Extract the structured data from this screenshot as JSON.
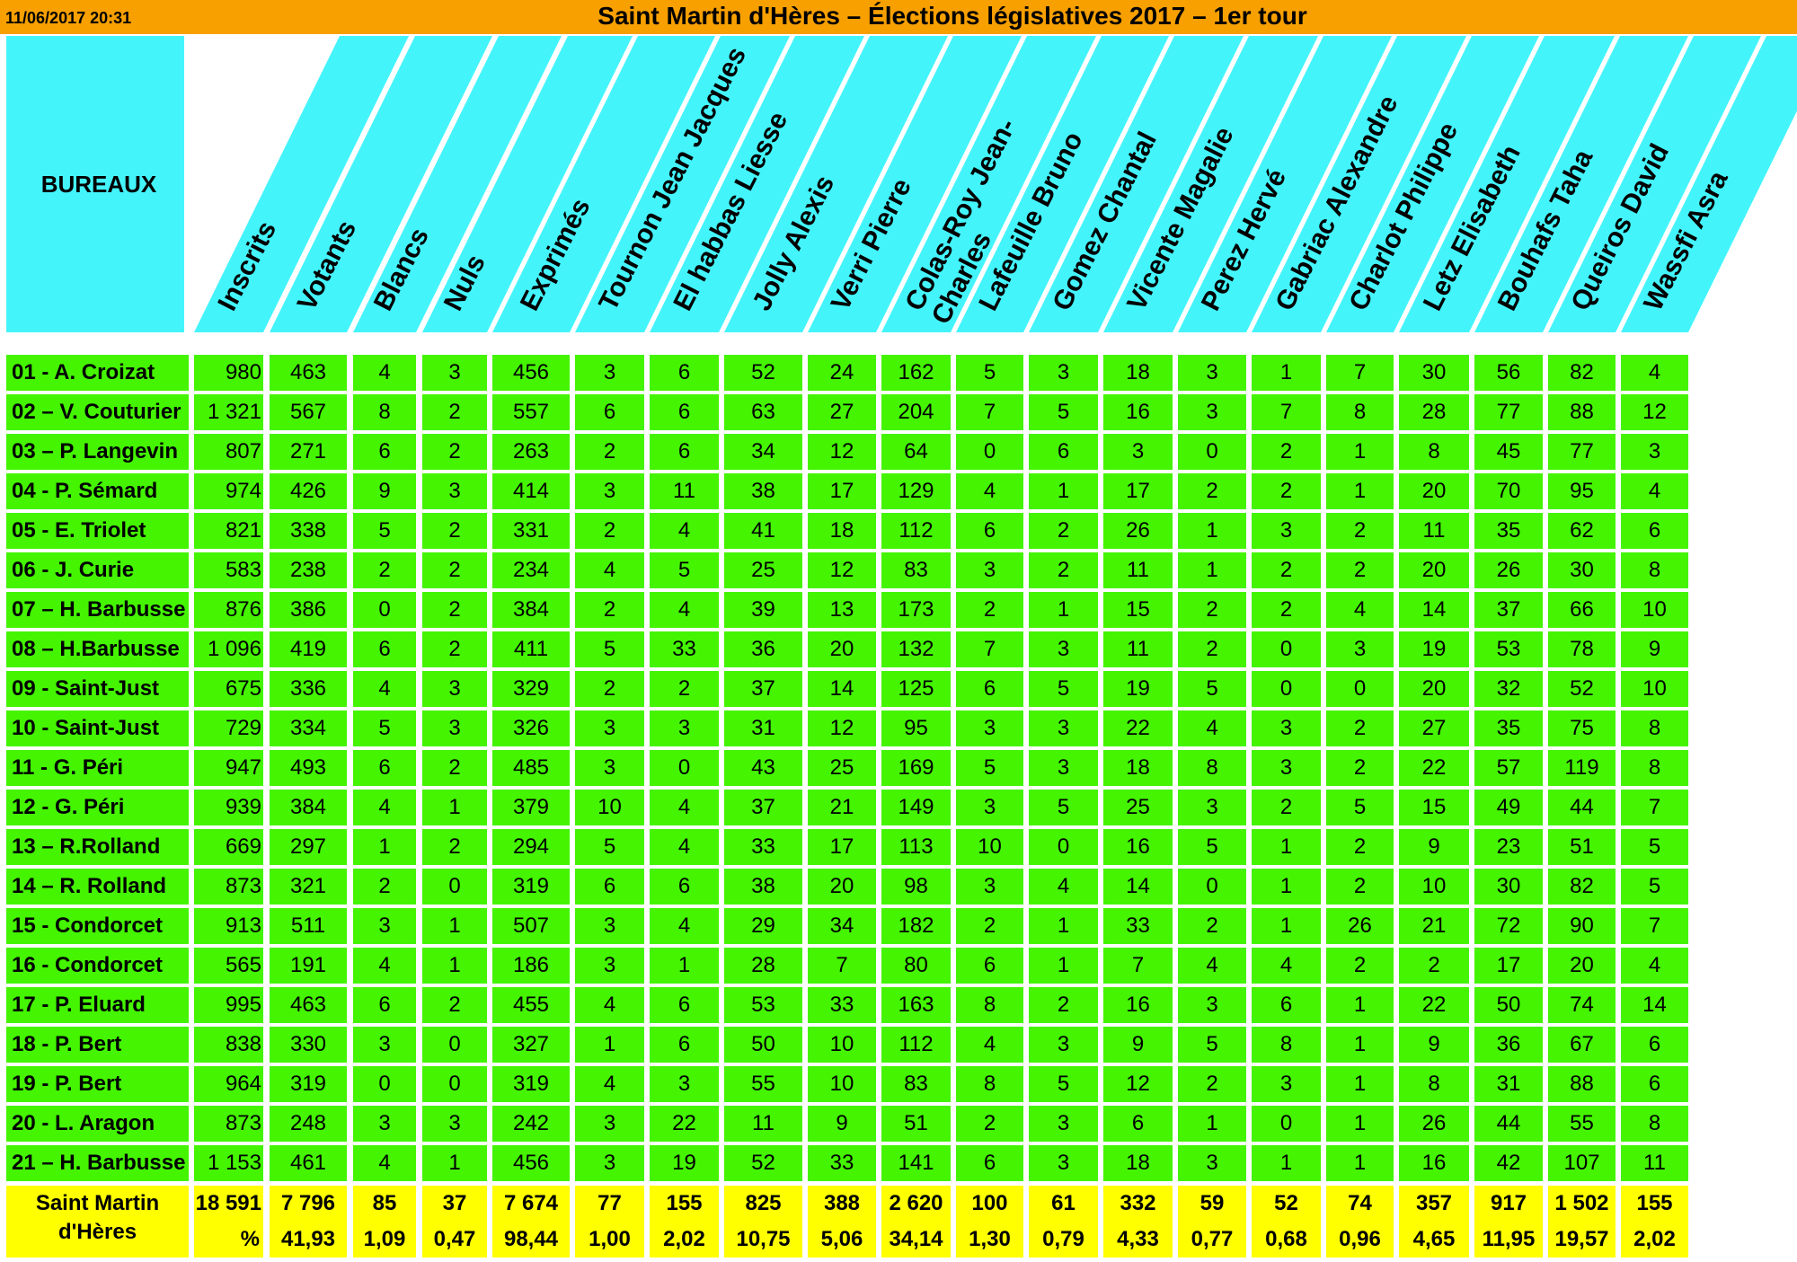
{
  "header": {
    "date": "11/06/2017 20:31",
    "title": "Saint Martin d'Hères – Élections législatives 2017 – 1er tour",
    "bureaux_label": "BUREAUX"
  },
  "columns": [
    [
      "Inscrits"
    ],
    [
      "Votants"
    ],
    [
      "Blancs"
    ],
    [
      "Nuls"
    ],
    [
      "Exprimés"
    ],
    [
      "Tournon Jean Jacques"
    ],
    [
      "El habbas Liesse"
    ],
    [
      "Jolly Alexis"
    ],
    [
      "Verri Pierre"
    ],
    [
      "Colas-Roy Jean-",
      "Charles"
    ],
    [
      "Lafeuille Bruno"
    ],
    [
      "Gomez Chantal"
    ],
    [
      "Vicente Magalie"
    ],
    [
      "Perez Hervé"
    ],
    [
      "Gabriac Alexandre"
    ],
    [
      "Charlot Philippe"
    ],
    [
      "Letz Elisabeth"
    ],
    [
      "Bouhafs Taha"
    ],
    [
      "Queiros David"
    ],
    [
      "Wassfi Asra"
    ]
  ],
  "rows": [
    {
      "name": "01 - A. Croizat",
      "values": [
        "980",
        "463",
        "4",
        "3",
        "456",
        "3",
        "6",
        "52",
        "24",
        "162",
        "5",
        "3",
        "18",
        "3",
        "1",
        "7",
        "30",
        "56",
        "82",
        "4"
      ]
    },
    {
      "name": "02 – V. Couturier",
      "values": [
        "1 321",
        "567",
        "8",
        "2",
        "557",
        "6",
        "6",
        "63",
        "27",
        "204",
        "7",
        "5",
        "16",
        "3",
        "7",
        "8",
        "28",
        "77",
        "88",
        "12"
      ]
    },
    {
      "name": "03 – P. Langevin",
      "values": [
        "807",
        "271",
        "6",
        "2",
        "263",
        "2",
        "6",
        "34",
        "12",
        "64",
        "0",
        "6",
        "3",
        "0",
        "2",
        "1",
        "8",
        "45",
        "77",
        "3"
      ]
    },
    {
      "name": "04 - P. Sémard",
      "values": [
        "974",
        "426",
        "9",
        "3",
        "414",
        "3",
        "11",
        "38",
        "17",
        "129",
        "4",
        "1",
        "17",
        "2",
        "2",
        "1",
        "20",
        "70",
        "95",
        "4"
      ]
    },
    {
      "name": "05 - E. Triolet",
      "values": [
        "821",
        "338",
        "5",
        "2",
        "331",
        "2",
        "4",
        "41",
        "18",
        "112",
        "6",
        "2",
        "26",
        "1",
        "3",
        "2",
        "11",
        "35",
        "62",
        "6"
      ]
    },
    {
      "name": "06 - J. Curie",
      "values": [
        "583",
        "238",
        "2",
        "2",
        "234",
        "4",
        "5",
        "25",
        "12",
        "83",
        "3",
        "2",
        "11",
        "1",
        "2",
        "2",
        "20",
        "26",
        "30",
        "8"
      ]
    },
    {
      "name": "07 – H. Barbusse",
      "values": [
        "876",
        "386",
        "0",
        "2",
        "384",
        "2",
        "4",
        "39",
        "13",
        "173",
        "2",
        "1",
        "15",
        "2",
        "2",
        "4",
        "14",
        "37",
        "66",
        "10"
      ]
    },
    {
      "name": "08 – H.Barbusse",
      "values": [
        "1 096",
        "419",
        "6",
        "2",
        "411",
        "5",
        "33",
        "36",
        "20",
        "132",
        "7",
        "3",
        "11",
        "2",
        "0",
        "3",
        "19",
        "53",
        "78",
        "9"
      ]
    },
    {
      "name": "09 - Saint-Just",
      "values": [
        "675",
        "336",
        "4",
        "3",
        "329",
        "2",
        "2",
        "37",
        "14",
        "125",
        "6",
        "5",
        "19",
        "5",
        "0",
        "0",
        "20",
        "32",
        "52",
        "10"
      ]
    },
    {
      "name": "10 - Saint-Just",
      "values": [
        "729",
        "334",
        "5",
        "3",
        "326",
        "3",
        "3",
        "31",
        "12",
        "95",
        "3",
        "3",
        "22",
        "4",
        "3",
        "2",
        "27",
        "35",
        "75",
        "8"
      ]
    },
    {
      "name": "11 - G. Péri",
      "values": [
        "947",
        "493",
        "6",
        "2",
        "485",
        "3",
        "0",
        "43",
        "25",
        "169",
        "5",
        "3",
        "18",
        "8",
        "3",
        "2",
        "22",
        "57",
        "119",
        "8"
      ]
    },
    {
      "name": "12 - G. Péri",
      "values": [
        "939",
        "384",
        "4",
        "1",
        "379",
        "10",
        "4",
        "37",
        "21",
        "149",
        "3",
        "5",
        "25",
        "3",
        "2",
        "5",
        "15",
        "49",
        "44",
        "7"
      ]
    },
    {
      "name": "13 – R.Rolland",
      "values": [
        "669",
        "297",
        "1",
        "2",
        "294",
        "5",
        "4",
        "33",
        "17",
        "113",
        "10",
        "0",
        "16",
        "5",
        "1",
        "2",
        "9",
        "23",
        "51",
        "5"
      ]
    },
    {
      "name": "14 – R. Rolland",
      "values": [
        "873",
        "321",
        "2",
        "0",
        "319",
        "6",
        "6",
        "38",
        "20",
        "98",
        "3",
        "4",
        "14",
        "0",
        "1",
        "2",
        "10",
        "30",
        "82",
        "5"
      ]
    },
    {
      "name": "15 - Condorcet",
      "values": [
        "913",
        "511",
        "3",
        "1",
        "507",
        "3",
        "4",
        "29",
        "34",
        "182",
        "2",
        "1",
        "33",
        "2",
        "1",
        "26",
        "21",
        "72",
        "90",
        "7"
      ]
    },
    {
      "name": "16 - Condorcet",
      "values": [
        "565",
        "191",
        "4",
        "1",
        "186",
        "3",
        "1",
        "28",
        "7",
        "80",
        "6",
        "1",
        "7",
        "4",
        "4",
        "2",
        "2",
        "17",
        "20",
        "4"
      ]
    },
    {
      "name": "17 - P. Eluard",
      "values": [
        "995",
        "463",
        "6",
        "2",
        "455",
        "4",
        "6",
        "53",
        "33",
        "163",
        "8",
        "2",
        "16",
        "3",
        "6",
        "1",
        "22",
        "50",
        "74",
        "14"
      ]
    },
    {
      "name": "18 - P. Bert",
      "values": [
        "838",
        "330",
        "3",
        "0",
        "327",
        "1",
        "6",
        "50",
        "10",
        "112",
        "4",
        "3",
        "9",
        "5",
        "8",
        "1",
        "9",
        "36",
        "67",
        "6"
      ]
    },
    {
      "name": "19 - P. Bert",
      "values": [
        "964",
        "319",
        "0",
        "0",
        "319",
        "4",
        "3",
        "55",
        "10",
        "83",
        "8",
        "5",
        "12",
        "2",
        "3",
        "1",
        "8",
        "31",
        "88",
        "6"
      ]
    },
    {
      "name": "20 - L. Aragon",
      "values": [
        "873",
        "248",
        "3",
        "3",
        "242",
        "3",
        "22",
        "11",
        "9",
        "51",
        "2",
        "3",
        "6",
        "1",
        "0",
        "1",
        "26",
        "44",
        "55",
        "8"
      ]
    },
    {
      "name": "21 – H. Barbusse",
      "values": [
        "1 153",
        "461",
        "4",
        "1",
        "456",
        "3",
        "19",
        "52",
        "33",
        "141",
        "6",
        "3",
        "18",
        "3",
        "1",
        "1",
        "16",
        "42",
        "107",
        "11"
      ]
    }
  ],
  "totals": {
    "name": "Saint Martin d'Hères",
    "values": [
      "18 591",
      "7 796",
      "85",
      "37",
      "7 674",
      "77",
      "155",
      "825",
      "388",
      "2 620",
      "100",
      "61",
      "332",
      "59",
      "52",
      "74",
      "357",
      "917",
      "1 502",
      "155"
    ],
    "pct_label": "%",
    "percents": [
      "41,93",
      "1,09",
      "0,47",
      "98,44",
      "1,00",
      "2,02",
      "10,75",
      "5,06",
      "34,14",
      "1,30",
      "0,79",
      "4,33",
      "0,77",
      "0,68",
      "0,96",
      "4,65",
      "11,95",
      "19,57",
      "2,02"
    ]
  },
  "colors": {
    "orange": "#f7a000",
    "cyan": "#44f4fb",
    "green": "#44f400",
    "yellow": "#ffff00"
  }
}
